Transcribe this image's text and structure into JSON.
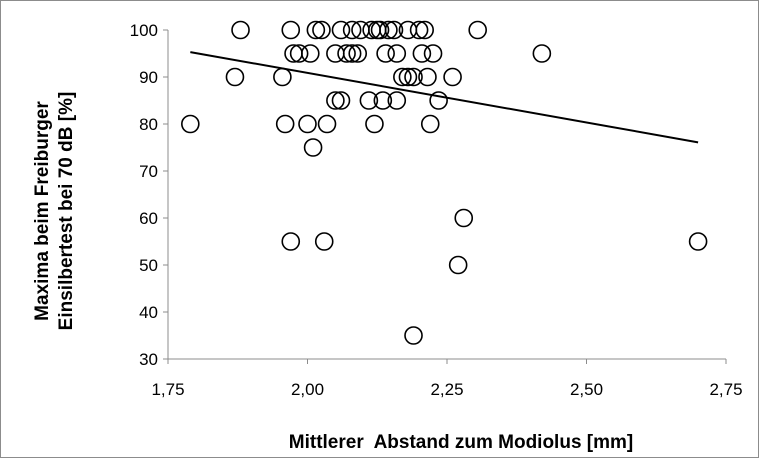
{
  "chart_data": {
    "type": "scatter",
    "title": "",
    "xlabel": "Mittlerer  Abstand zum Modiolus [mm]",
    "ylabel_line1": "Maxima beim Freiburger",
    "ylabel_line2": "Einsilbertest bei 70 dB [%]",
    "xlim": [
      1.75,
      2.75
    ],
    "ylim": [
      30,
      100
    ],
    "x_ticks": [
      1.75,
      2.0,
      2.25,
      2.5,
      2.75
    ],
    "x_tick_labels": [
      "1,75",
      "2,00",
      "2,25",
      "2,50",
      "2,75"
    ],
    "y_ticks": [
      30,
      40,
      50,
      60,
      70,
      80,
      90,
      100
    ],
    "y_tick_labels": [
      "30",
      "40",
      "50",
      "60",
      "70",
      "80",
      "90",
      "100"
    ],
    "grid": false,
    "marker": "open-circle",
    "marker_color": "#000000",
    "trendline": {
      "type": "linear",
      "x": [
        1.79,
        2.7
      ],
      "y": [
        95.3,
        76.1
      ]
    },
    "points": [
      {
        "x": 1.79,
        "y": 80
      },
      {
        "x": 1.87,
        "y": 90
      },
      {
        "x": 1.88,
        "y": 100
      },
      {
        "x": 1.955,
        "y": 90
      },
      {
        "x": 1.96,
        "y": 80
      },
      {
        "x": 1.97,
        "y": 55
      },
      {
        "x": 1.97,
        "y": 100
      },
      {
        "x": 1.975,
        "y": 95
      },
      {
        "x": 1.985,
        "y": 95
      },
      {
        "x": 2.0,
        "y": 80
      },
      {
        "x": 2.005,
        "y": 95
      },
      {
        "x": 2.01,
        "y": 75
      },
      {
        "x": 2.015,
        "y": 100
      },
      {
        "x": 2.025,
        "y": 100
      },
      {
        "x": 2.03,
        "y": 55
      },
      {
        "x": 2.035,
        "y": 80
      },
      {
        "x": 2.05,
        "y": 85
      },
      {
        "x": 2.05,
        "y": 95
      },
      {
        "x": 2.06,
        "y": 85
      },
      {
        "x": 2.06,
        "y": 100
      },
      {
        "x": 2.07,
        "y": 95
      },
      {
        "x": 2.08,
        "y": 100
      },
      {
        "x": 2.08,
        "y": 95
      },
      {
        "x": 2.09,
        "y": 95
      },
      {
        "x": 2.095,
        "y": 100
      },
      {
        "x": 2.11,
        "y": 85
      },
      {
        "x": 2.115,
        "y": 100
      },
      {
        "x": 2.12,
        "y": 80
      },
      {
        "x": 2.125,
        "y": 100
      },
      {
        "x": 2.13,
        "y": 100
      },
      {
        "x": 2.135,
        "y": 85
      },
      {
        "x": 2.14,
        "y": 95
      },
      {
        "x": 2.145,
        "y": 100
      },
      {
        "x": 2.155,
        "y": 100
      },
      {
        "x": 2.16,
        "y": 85
      },
      {
        "x": 2.16,
        "y": 95
      },
      {
        "x": 2.17,
        "y": 90
      },
      {
        "x": 2.18,
        "y": 100
      },
      {
        "x": 2.18,
        "y": 90
      },
      {
        "x": 2.19,
        "y": 35
      },
      {
        "x": 2.19,
        "y": 90
      },
      {
        "x": 2.2,
        "y": 100
      },
      {
        "x": 2.205,
        "y": 95
      },
      {
        "x": 2.21,
        "y": 100
      },
      {
        "x": 2.215,
        "y": 90
      },
      {
        "x": 2.22,
        "y": 80
      },
      {
        "x": 2.225,
        "y": 95
      },
      {
        "x": 2.235,
        "y": 85
      },
      {
        "x": 2.26,
        "y": 90
      },
      {
        "x": 2.27,
        "y": 50
      },
      {
        "x": 2.28,
        "y": 60
      },
      {
        "x": 2.305,
        "y": 100
      },
      {
        "x": 2.42,
        "y": 95
      },
      {
        "x": 2.7,
        "y": 55
      }
    ]
  }
}
